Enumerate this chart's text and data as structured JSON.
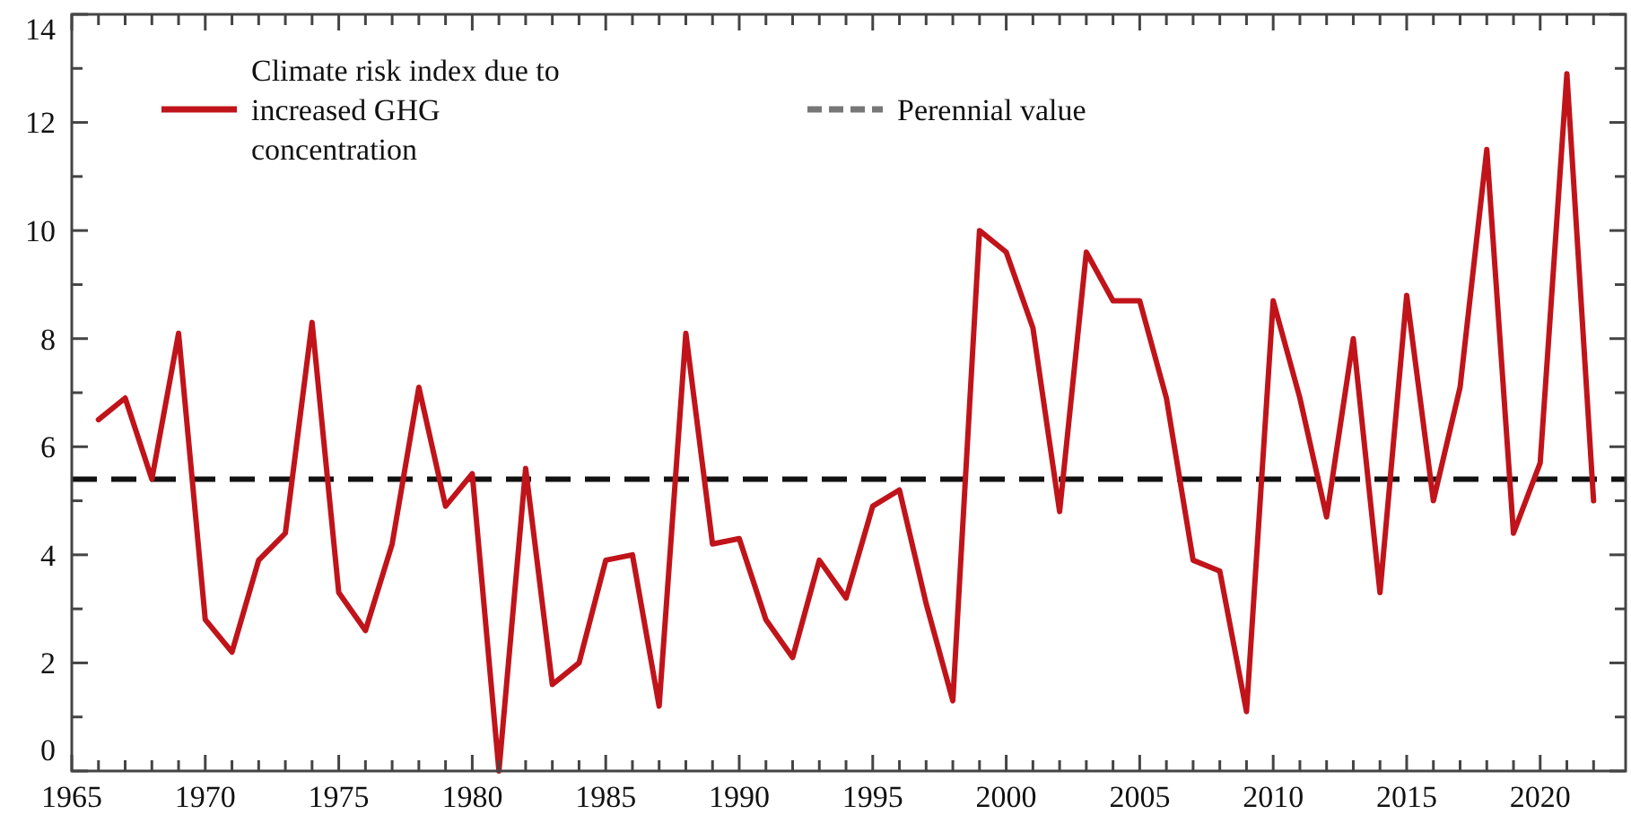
{
  "chart_data": {
    "type": "line",
    "x": [
      1966,
      1967,
      1968,
      1969,
      1970,
      1971,
      1972,
      1973,
      1974,
      1975,
      1976,
      1977,
      1978,
      1979,
      1980,
      1981,
      1982,
      1983,
      1984,
      1985,
      1986,
      1987,
      1988,
      1989,
      1990,
      1991,
      1992,
      1993,
      1994,
      1995,
      1996,
      1997,
      1998,
      1999,
      2000,
      2001,
      2002,
      2003,
      2004,
      2005,
      2006,
      2007,
      2008,
      2009,
      2010,
      2011,
      2012,
      2013,
      2014,
      2015,
      2016,
      2017,
      2018,
      2019,
      2020,
      2021,
      2022
    ],
    "series": [
      {
        "name": "Climate risk index due to increased GHG concentration",
        "color": "#c0141a",
        "values": [
          6.5,
          6.9,
          5.4,
          8.1,
          2.8,
          2.2,
          3.9,
          4.4,
          8.3,
          3.3,
          2.6,
          4.2,
          7.1,
          4.9,
          5.5,
          0,
          5.6,
          1.6,
          2.0,
          3.9,
          4.0,
          1.2,
          8.1,
          4.2,
          4.3,
          2.8,
          2.1,
          3.9,
          3.2,
          4.9,
          5.2,
          3.1,
          1.3,
          10.0,
          9.6,
          8.2,
          4.8,
          9.6,
          8.7,
          8.7,
          6.9,
          3.9,
          3.7,
          1.1,
          8.7,
          6.9,
          4.7,
          8.0,
          3.3,
          8.8,
          5.0,
          7.1,
          11.5,
          4.4,
          5.7,
          12.9,
          5.0
        ]
      }
    ],
    "ref_lines": [
      {
        "axis": "y",
        "value": 5.4,
        "label": "Perennial value",
        "color": "#111111",
        "line_style": "dashed"
      }
    ],
    "xlim": [
      1965,
      2023.2
    ],
    "xticks": [
      1965,
      {
        "value": 1966,
        "label": null
      },
      {
        "value": 1967,
        "label": null
      },
      {
        "value": 1968,
        "label": null
      },
      {
        "value": 1969,
        "label": null
      },
      1970,
      {
        "value": 1971,
        "label": null
      },
      {
        "value": 1972,
        "label": null
      },
      {
        "value": 1973,
        "label": null
      },
      {
        "value": 1974,
        "label": null
      },
      1975,
      {
        "value": 1976,
        "label": null
      },
      {
        "value": 1977,
        "label": null
      },
      {
        "value": 1978,
        "label": null
      },
      {
        "value": 1979,
        "label": null
      },
      1980,
      {
        "value": 1981,
        "label": null
      },
      {
        "value": 1982,
        "label": null
      },
      {
        "value": 1983,
        "label": null
      },
      {
        "value": 1984,
        "label": null
      },
      1985,
      {
        "value": 1986,
        "label": null
      },
      {
        "value": 1987,
        "label": null
      },
      {
        "value": 1988,
        "label": null
      },
      {
        "value": 1989,
        "label": null
      },
      1990,
      {
        "value": 1991,
        "label": null
      },
      {
        "value": 1992,
        "label": null
      },
      {
        "value": 1993,
        "label": null
      },
      {
        "value": 1994,
        "label": null
      },
      1995,
      {
        "value": 1996,
        "label": null
      },
      {
        "value": 1997,
        "label": null
      },
      {
        "value": 1998,
        "label": null
      },
      {
        "value": 1999,
        "label": null
      },
      2000,
      {
        "value": 2001,
        "label": null
      },
      {
        "value": 2002,
        "label": null
      },
      {
        "value": 2003,
        "label": null
      },
      {
        "value": 2004,
        "label": null
      },
      2005,
      {
        "value": 2006,
        "label": null
      },
      {
        "value": 2007,
        "label": null
      },
      {
        "value": 2008,
        "label": null
      },
      {
        "value": 2009,
        "label": null
      },
      2010,
      {
        "value": 2011,
        "label": null
      },
      {
        "value": 2012,
        "label": null
      },
      {
        "value": 2013,
        "label": null
      },
      {
        "value": 2014,
        "label": null
      },
      2015,
      {
        "value": 2016,
        "label": null
      },
      {
        "value": 2017,
        "label": null
      },
      {
        "value": 2018,
        "label": null
      },
      {
        "value": 2019,
        "label": null
      },
      2020,
      {
        "value": 2021,
        "label": null
      },
      {
        "value": 2022,
        "label": null
      }
    ],
    "ylim": [
      0,
      14
    ],
    "yticks": [
      0,
      {
        "value": 1,
        "label": null
      },
      2,
      {
        "value": 3,
        "label": null
      },
      4,
      {
        "value": 5,
        "label": null
      },
      6,
      {
        "value": 7,
        "label": null
      },
      8,
      {
        "value": 9,
        "label": null
      },
      10,
      {
        "value": 11,
        "label": null
      },
      12,
      {
        "value": 13,
        "label": null
      },
      14
    ],
    "grid": false,
    "legend": "top left",
    "marker": "none",
    "line_style": "solid"
  }
}
